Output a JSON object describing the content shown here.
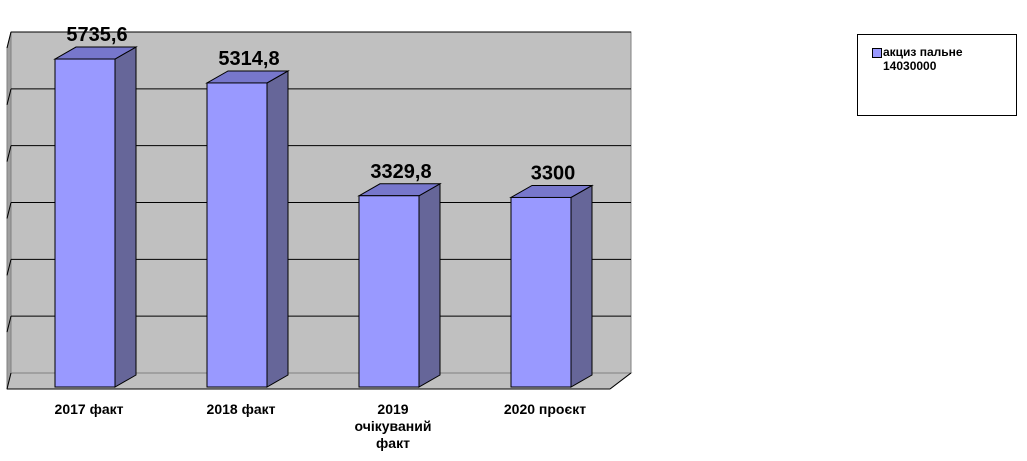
{
  "chart_data": {
    "type": "bar",
    "categories": [
      [
        "2017 факт"
      ],
      [
        "2018 факт"
      ],
      [
        "2019",
        "очікуваний",
        "факт"
      ],
      [
        "2020 проєкт"
      ]
    ],
    "series": [
      {
        "name": "акциз пальне 14030000",
        "values": [
          5735.6,
          5314.8,
          3329.8,
          3300
        ],
        "data_labels": [
          "5735,6",
          "5314,8",
          "3329,8",
          "3300"
        ],
        "color": "#9999ff",
        "side_color": "#666699"
      }
    ],
    "ylim": [
      0,
      6000
    ],
    "grid": true,
    "legend_position": "top-right",
    "style": "3d-column"
  },
  "legend": {
    "line1": "акциз пальне",
    "line2": "14030000"
  },
  "colors": {
    "wall": "#c0c0c0",
    "floor": "#c0c0c0",
    "grid": "#000000"
  }
}
